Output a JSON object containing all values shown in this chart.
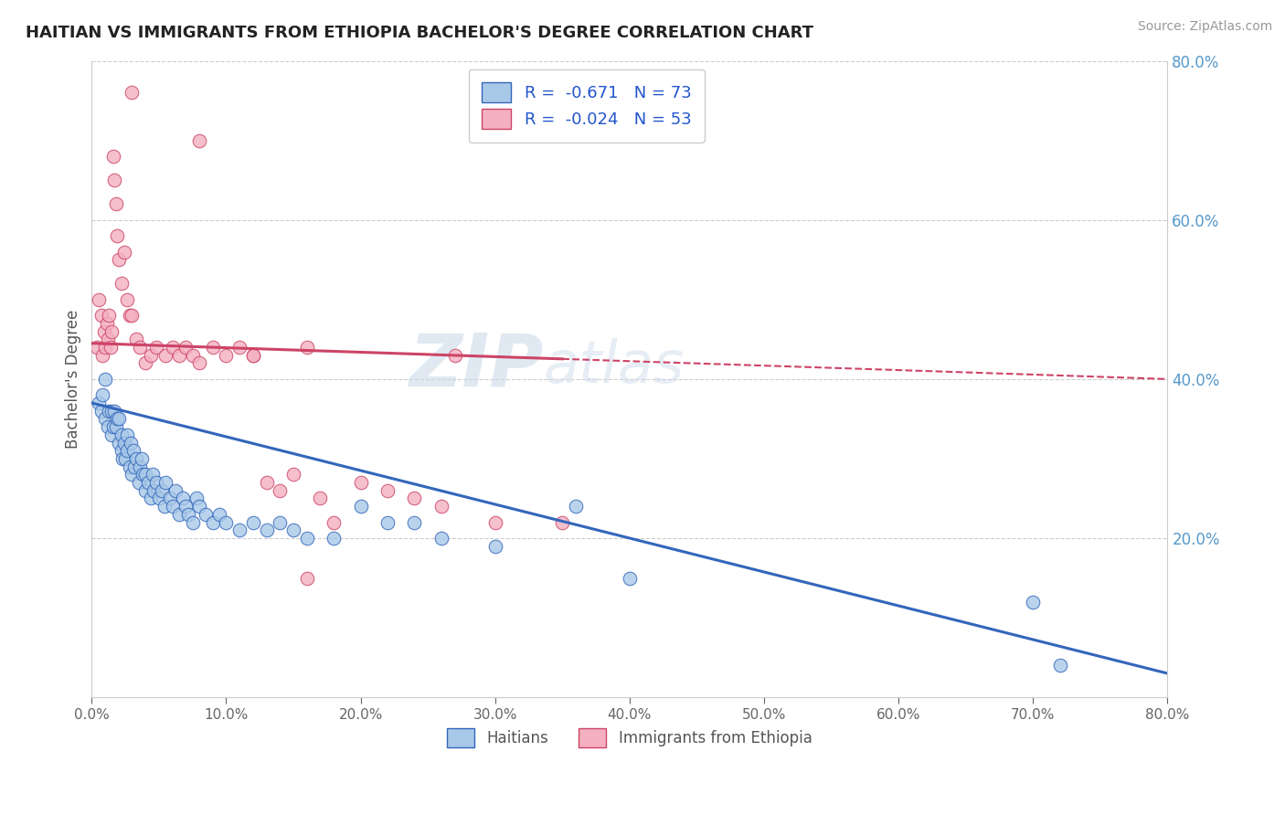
{
  "title": "HAITIAN VS IMMIGRANTS FROM ETHIOPIA BACHELOR'S DEGREE CORRELATION CHART",
  "source": "Source: ZipAtlas.com",
  "ylabel": "Bachelor's Degree",
  "r_haitian": -0.671,
  "n_haitian": 73,
  "r_ethiopia": -0.024,
  "n_ethiopia": 53,
  "color_haitian": "#a8c8e8",
  "color_ethiopia": "#f4b0c0",
  "line_color_haitian": "#3366bb",
  "line_color_ethiopia": "#cc4466",
  "watermark_color": "#c8d8e8",
  "xlim": [
    0.0,
    0.8
  ],
  "ylim": [
    0.0,
    0.8
  ],
  "x_ticks": [
    0.0,
    0.1,
    0.2,
    0.3,
    0.4,
    0.5,
    0.6,
    0.7,
    0.8
  ],
  "y_ticks": [
    0.2,
    0.4,
    0.6,
    0.8
  ],
  "background_color": "#ffffff",
  "grid_color": "#cccccc",
  "title_color": "#222222",
  "axis_label_color": "#555555",
  "legend_r_color": "#2255cc",
  "right_axis_color": "#5599cc",
  "haitian_x": [
    0.005,
    0.007,
    0.008,
    0.01,
    0.01,
    0.012,
    0.013,
    0.015,
    0.015,
    0.016,
    0.017,
    0.018,
    0.019,
    0.02,
    0.02,
    0.022,
    0.022,
    0.023,
    0.024,
    0.025,
    0.026,
    0.026,
    0.028,
    0.029,
    0.03,
    0.031,
    0.032,
    0.033,
    0.035,
    0.036,
    0.037,
    0.038,
    0.04,
    0.04,
    0.042,
    0.044,
    0.045,
    0.046,
    0.048,
    0.05,
    0.052,
    0.054,
    0.055,
    0.058,
    0.06,
    0.062,
    0.065,
    0.068,
    0.07,
    0.072,
    0.075,
    0.078,
    0.08,
    0.085,
    0.09,
    0.095,
    0.1,
    0.11,
    0.12,
    0.13,
    0.14,
    0.15,
    0.16,
    0.18,
    0.2,
    0.22,
    0.24,
    0.26,
    0.3,
    0.36,
    0.4,
    0.7,
    0.72
  ],
  "haitian_y": [
    0.37,
    0.36,
    0.38,
    0.35,
    0.4,
    0.34,
    0.36,
    0.33,
    0.36,
    0.34,
    0.36,
    0.34,
    0.35,
    0.32,
    0.35,
    0.31,
    0.33,
    0.3,
    0.32,
    0.3,
    0.31,
    0.33,
    0.29,
    0.32,
    0.28,
    0.31,
    0.29,
    0.3,
    0.27,
    0.29,
    0.3,
    0.28,
    0.26,
    0.28,
    0.27,
    0.25,
    0.28,
    0.26,
    0.27,
    0.25,
    0.26,
    0.24,
    0.27,
    0.25,
    0.24,
    0.26,
    0.23,
    0.25,
    0.24,
    0.23,
    0.22,
    0.25,
    0.24,
    0.23,
    0.22,
    0.23,
    0.22,
    0.21,
    0.22,
    0.21,
    0.22,
    0.21,
    0.2,
    0.2,
    0.24,
    0.22,
    0.22,
    0.2,
    0.19,
    0.24,
    0.15,
    0.12,
    0.04
  ],
  "ethiopia_x": [
    0.004,
    0.005,
    0.007,
    0.008,
    0.009,
    0.01,
    0.011,
    0.012,
    0.013,
    0.014,
    0.015,
    0.016,
    0.017,
    0.018,
    0.019,
    0.02,
    0.022,
    0.024,
    0.026,
    0.028,
    0.03,
    0.033,
    0.036,
    0.04,
    0.044,
    0.048,
    0.055,
    0.06,
    0.065,
    0.07,
    0.075,
    0.08,
    0.09,
    0.1,
    0.11,
    0.12,
    0.13,
    0.14,
    0.15,
    0.16,
    0.17,
    0.18,
    0.2,
    0.22,
    0.24,
    0.26,
    0.3,
    0.35,
    0.27,
    0.16,
    0.12,
    0.08,
    0.03
  ],
  "ethiopia_y": [
    0.44,
    0.5,
    0.48,
    0.43,
    0.46,
    0.44,
    0.47,
    0.45,
    0.48,
    0.44,
    0.46,
    0.68,
    0.65,
    0.62,
    0.58,
    0.55,
    0.52,
    0.56,
    0.5,
    0.48,
    0.48,
    0.45,
    0.44,
    0.42,
    0.43,
    0.44,
    0.43,
    0.44,
    0.43,
    0.44,
    0.43,
    0.42,
    0.44,
    0.43,
    0.44,
    0.43,
    0.27,
    0.26,
    0.28,
    0.15,
    0.25,
    0.22,
    0.27,
    0.26,
    0.25,
    0.24,
    0.22,
    0.22,
    0.43,
    0.44,
    0.43,
    0.7,
    0.76
  ]
}
